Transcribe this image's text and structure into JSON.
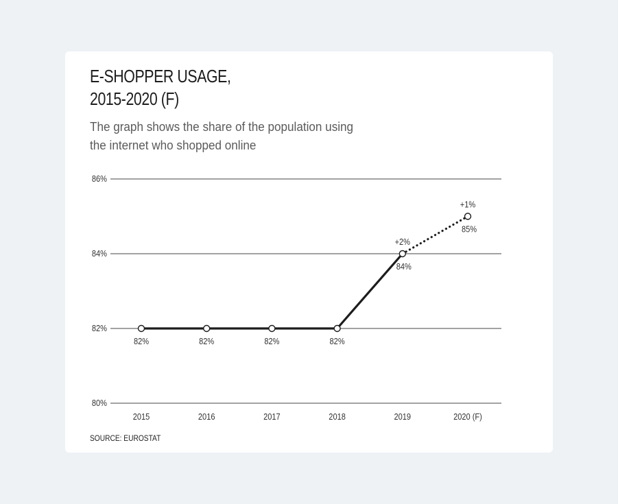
{
  "title_line1": "E-SHOPPER USAGE,",
  "title_line2": "2015-2020 (F)",
  "subtitle": "The graph shows the share of the population using the internet who shopped online",
  "source": "SOURCE: EUROSTAT",
  "colors": {
    "background": "#eef2f5",
    "card": "#ffffff",
    "line": "#1d1d1d",
    "grid": "#444444"
  },
  "chart_data": {
    "type": "line",
    "categories": [
      "2015",
      "2016",
      "2017",
      "2018",
      "2019",
      "2020 (F)"
    ],
    "values": [
      82,
      82,
      82,
      82,
      84,
      85
    ],
    "value_labels": [
      "82%",
      "82%",
      "82%",
      "82%",
      "84%",
      "85%"
    ],
    "change_labels": [
      "",
      "",
      "",
      "",
      "+2%",
      "+1%"
    ],
    "forecast_from_index": 4,
    "yticks": [
      80,
      82,
      84,
      86
    ],
    "ytick_labels": [
      "80%",
      "82%",
      "84%",
      "86%"
    ],
    "ylim": [
      80,
      86
    ],
    "grid": true,
    "xlabel": "",
    "ylabel": ""
  }
}
